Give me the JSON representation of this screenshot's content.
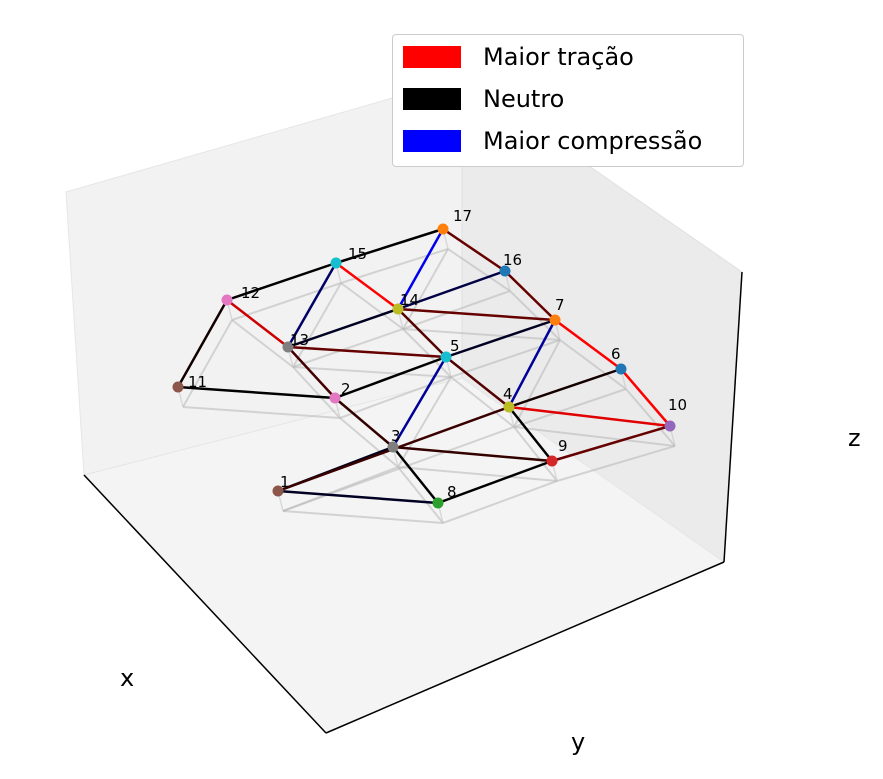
{
  "chart_data": {
    "type": "3d-truss",
    "title": "",
    "xlabel": "x",
    "ylabel": "y",
    "zlabel": "z",
    "legend": {
      "position": "top-right",
      "entries": [
        {
          "label": "Maior tração",
          "color": "#ff0000"
        },
        {
          "label": "Neutro",
          "color": "#000000"
        },
        {
          "label": "Maior compressão",
          "color": "#0000ff"
        }
      ]
    },
    "nodes": [
      {
        "id": "1",
        "color": "#8c564b"
      },
      {
        "id": "2",
        "color": "#e377c2"
      },
      {
        "id": "3",
        "color": "#7f7f7f"
      },
      {
        "id": "4",
        "color": "#bcbd22"
      },
      {
        "id": "5",
        "color": "#17becf"
      },
      {
        "id": "6",
        "color": "#1f77b4"
      },
      {
        "id": "7",
        "color": "#ff7f0e"
      },
      {
        "id": "8",
        "color": "#2ca02c"
      },
      {
        "id": "9",
        "color": "#d62728"
      },
      {
        "id": "10",
        "color": "#9467bd"
      },
      {
        "id": "11",
        "color": "#8c564b"
      },
      {
        "id": "12",
        "color": "#e377c2"
      },
      {
        "id": "13",
        "color": "#7f7f7f"
      },
      {
        "id": "14",
        "color": "#bcbd22"
      },
      {
        "id": "15",
        "color": "#17becf"
      },
      {
        "id": "16",
        "color": "#1f77b4"
      },
      {
        "id": "17",
        "color": "#ff7f0e"
      }
    ],
    "bars": [
      {
        "from": "1",
        "to": "8",
        "color": "#000022"
      },
      {
        "from": "1",
        "to": "3",
        "color": "#000018"
      },
      {
        "from": "1",
        "to": "4",
        "color": "#3a0000"
      },
      {
        "from": "3",
        "to": "8",
        "color": "#000000"
      },
      {
        "from": "8",
        "to": "9",
        "color": "#000000"
      },
      {
        "from": "9",
        "to": "10",
        "color": "#660000"
      },
      {
        "from": "3",
        "to": "9",
        "color": "#330000"
      },
      {
        "from": "4",
        "to": "9",
        "color": "#000000"
      },
      {
        "from": "4",
        "to": "10",
        "color": "#e00000"
      },
      {
        "from": "10",
        "to": "6",
        "color": "#ff0000"
      },
      {
        "from": "6",
        "to": "7",
        "color": "#ff0000"
      },
      {
        "from": "4",
        "to": "6",
        "color": "#150000"
      },
      {
        "from": "4",
        "to": "7",
        "color": "#00009a"
      },
      {
        "from": "4",
        "to": "5",
        "color": "#550000"
      },
      {
        "from": "3",
        "to": "5",
        "color": "#000099"
      },
      {
        "from": "2",
        "to": "3",
        "color": "#330000"
      },
      {
        "from": "2",
        "to": "5",
        "color": "#000000"
      },
      {
        "from": "5",
        "to": "7",
        "color": "#000022"
      },
      {
        "from": "5",
        "to": "14",
        "color": "#550000"
      },
      {
        "from": "5",
        "to": "13",
        "color": "#660000"
      },
      {
        "from": "7",
        "to": "14",
        "color": "#660000"
      },
      {
        "from": "7",
        "to": "16",
        "color": "#660000"
      },
      {
        "from": "16",
        "to": "17",
        "color": "#660000"
      },
      {
        "from": "14",
        "to": "16",
        "color": "#000044"
      },
      {
        "from": "14",
        "to": "17",
        "color": "#0000ee"
      },
      {
        "from": "14",
        "to": "15",
        "color": "#ff0000"
      },
      {
        "from": "15",
        "to": "17",
        "color": "#000000"
      },
      {
        "from": "13",
        "to": "15",
        "color": "#000066"
      },
      {
        "from": "13",
        "to": "14",
        "color": "#000022"
      },
      {
        "from": "12",
        "to": "15",
        "color": "#000000"
      },
      {
        "from": "12",
        "to": "13",
        "color": "#cc0000"
      },
      {
        "from": "11",
        "to": "12",
        "color": "#110000"
      },
      {
        "from": "11",
        "to": "2",
        "color": "#000000"
      },
      {
        "from": "2",
        "to": "13",
        "color": "#440000"
      }
    ]
  }
}
